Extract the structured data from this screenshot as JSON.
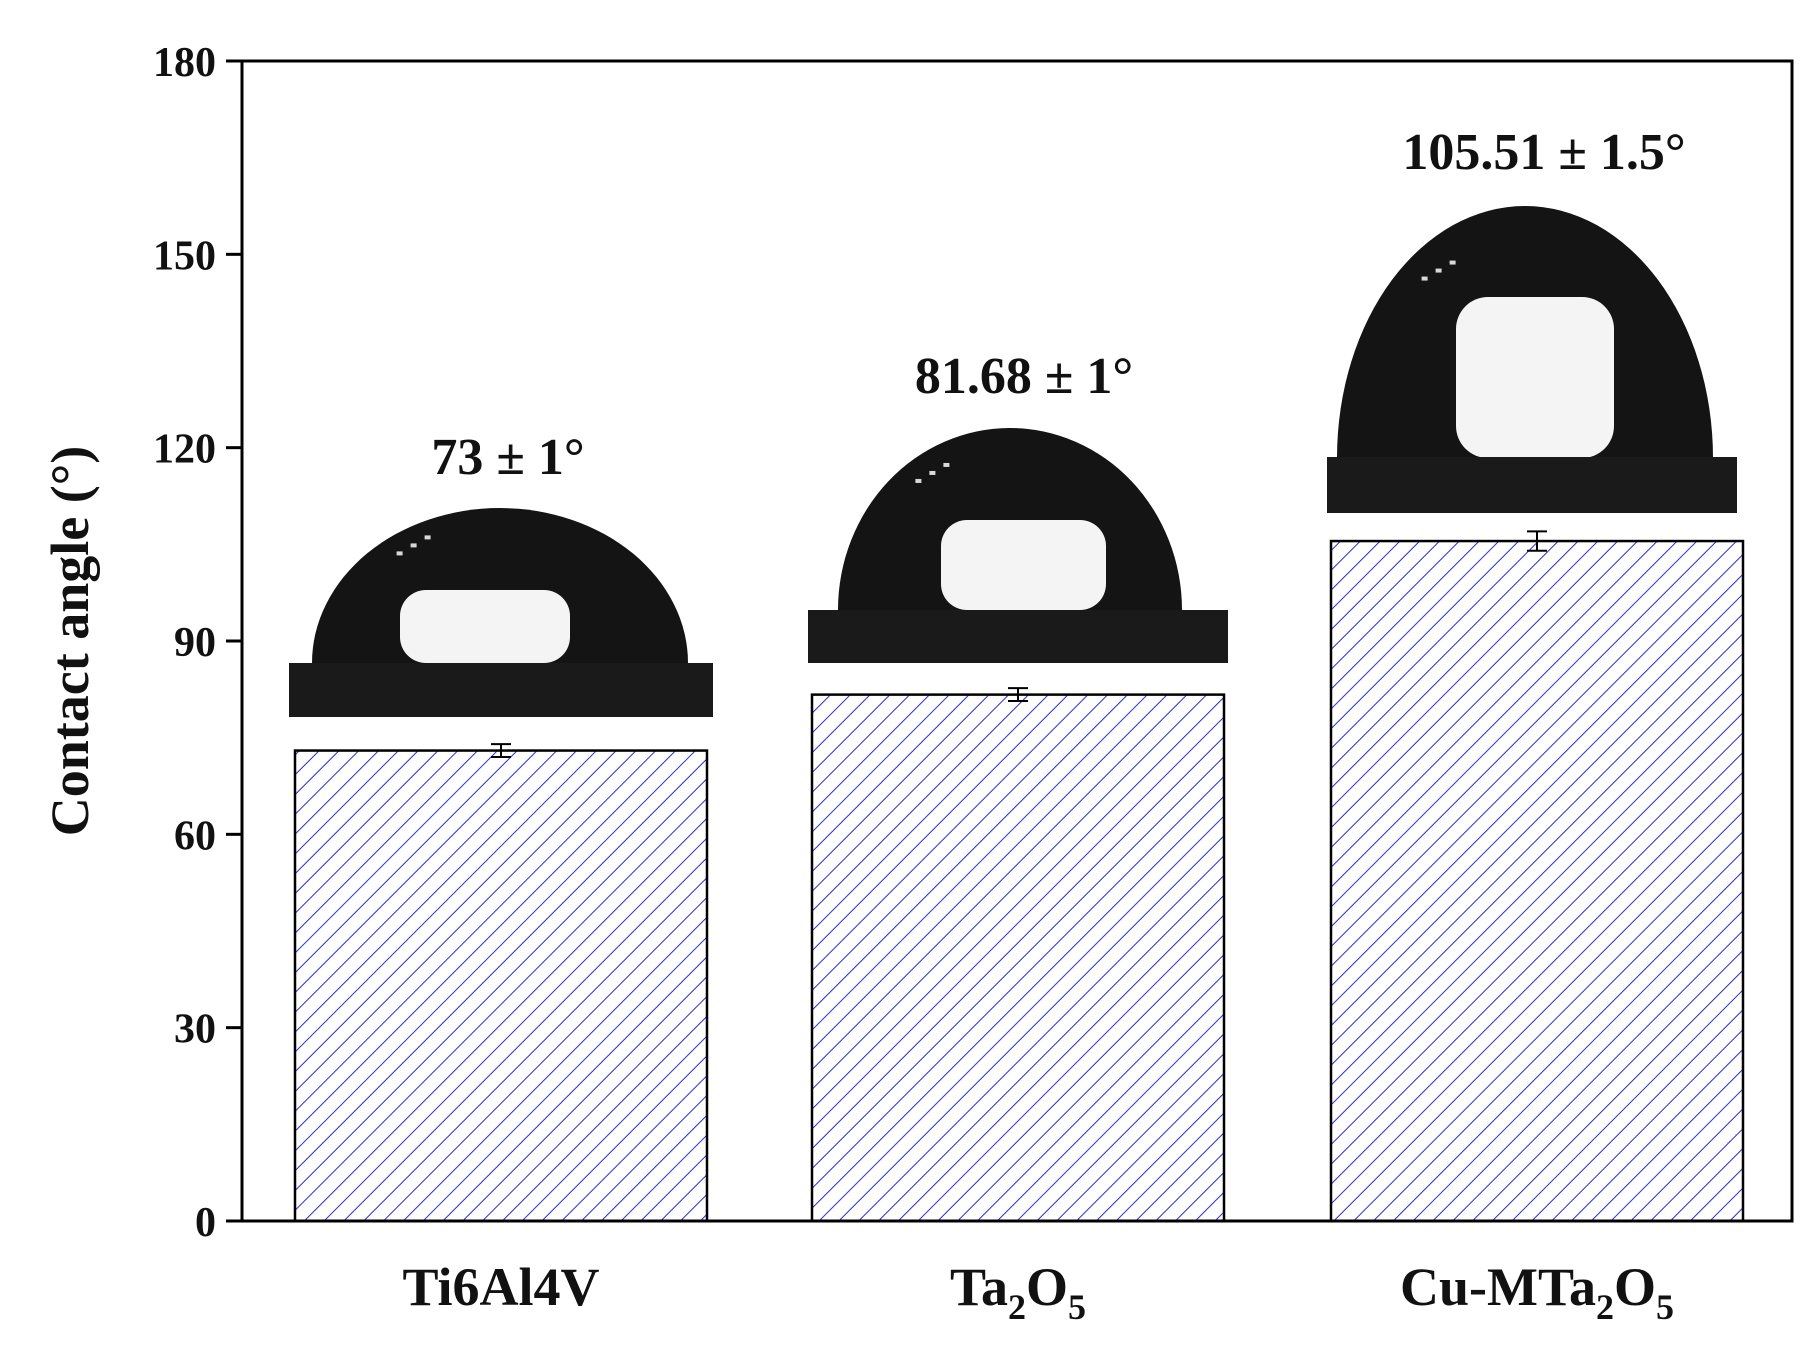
{
  "chart_data": {
    "type": "bar",
    "categories": [
      {
        "base": "Ti6Al4V",
        "sub": []
      },
      {
        "base": "Ta",
        "sub": [
          "2",
          "O",
          "5"
        ]
      },
      {
        "base": "Cu-MTa",
        "sub": [
          "2",
          "O",
          "5"
        ]
      }
    ],
    "category_labels_plain": [
      "Ti6Al4V",
      "Ta2O5",
      "Cu-MTa2O5"
    ],
    "values": [
      73,
      81.68,
      105.51
    ],
    "errors": [
      1,
      1,
      1.5
    ],
    "annotations": [
      "73 ± 1°",
      "81.68 ± 1°",
      "105.51 ± 1.5°"
    ],
    "ylabel": "Contact angle (°)",
    "xlabel": "",
    "title": "",
    "ylim": [
      0,
      180
    ],
    "yticks": [
      0,
      30,
      60,
      90,
      120,
      150,
      180
    ],
    "grid": false,
    "legend": "none",
    "bar_fill": "hatched",
    "colors": {
      "hatch": "#2b2bd6",
      "bar_edge": "#000000",
      "axis": "#000000",
      "droplet": "#141414",
      "droplet_highlight": "#f4f4f4",
      "substrate": "#1a1a1a"
    },
    "inset_images": [
      "water-droplet-photo",
      "water-droplet-photo",
      "water-droplet-photo"
    ]
  }
}
